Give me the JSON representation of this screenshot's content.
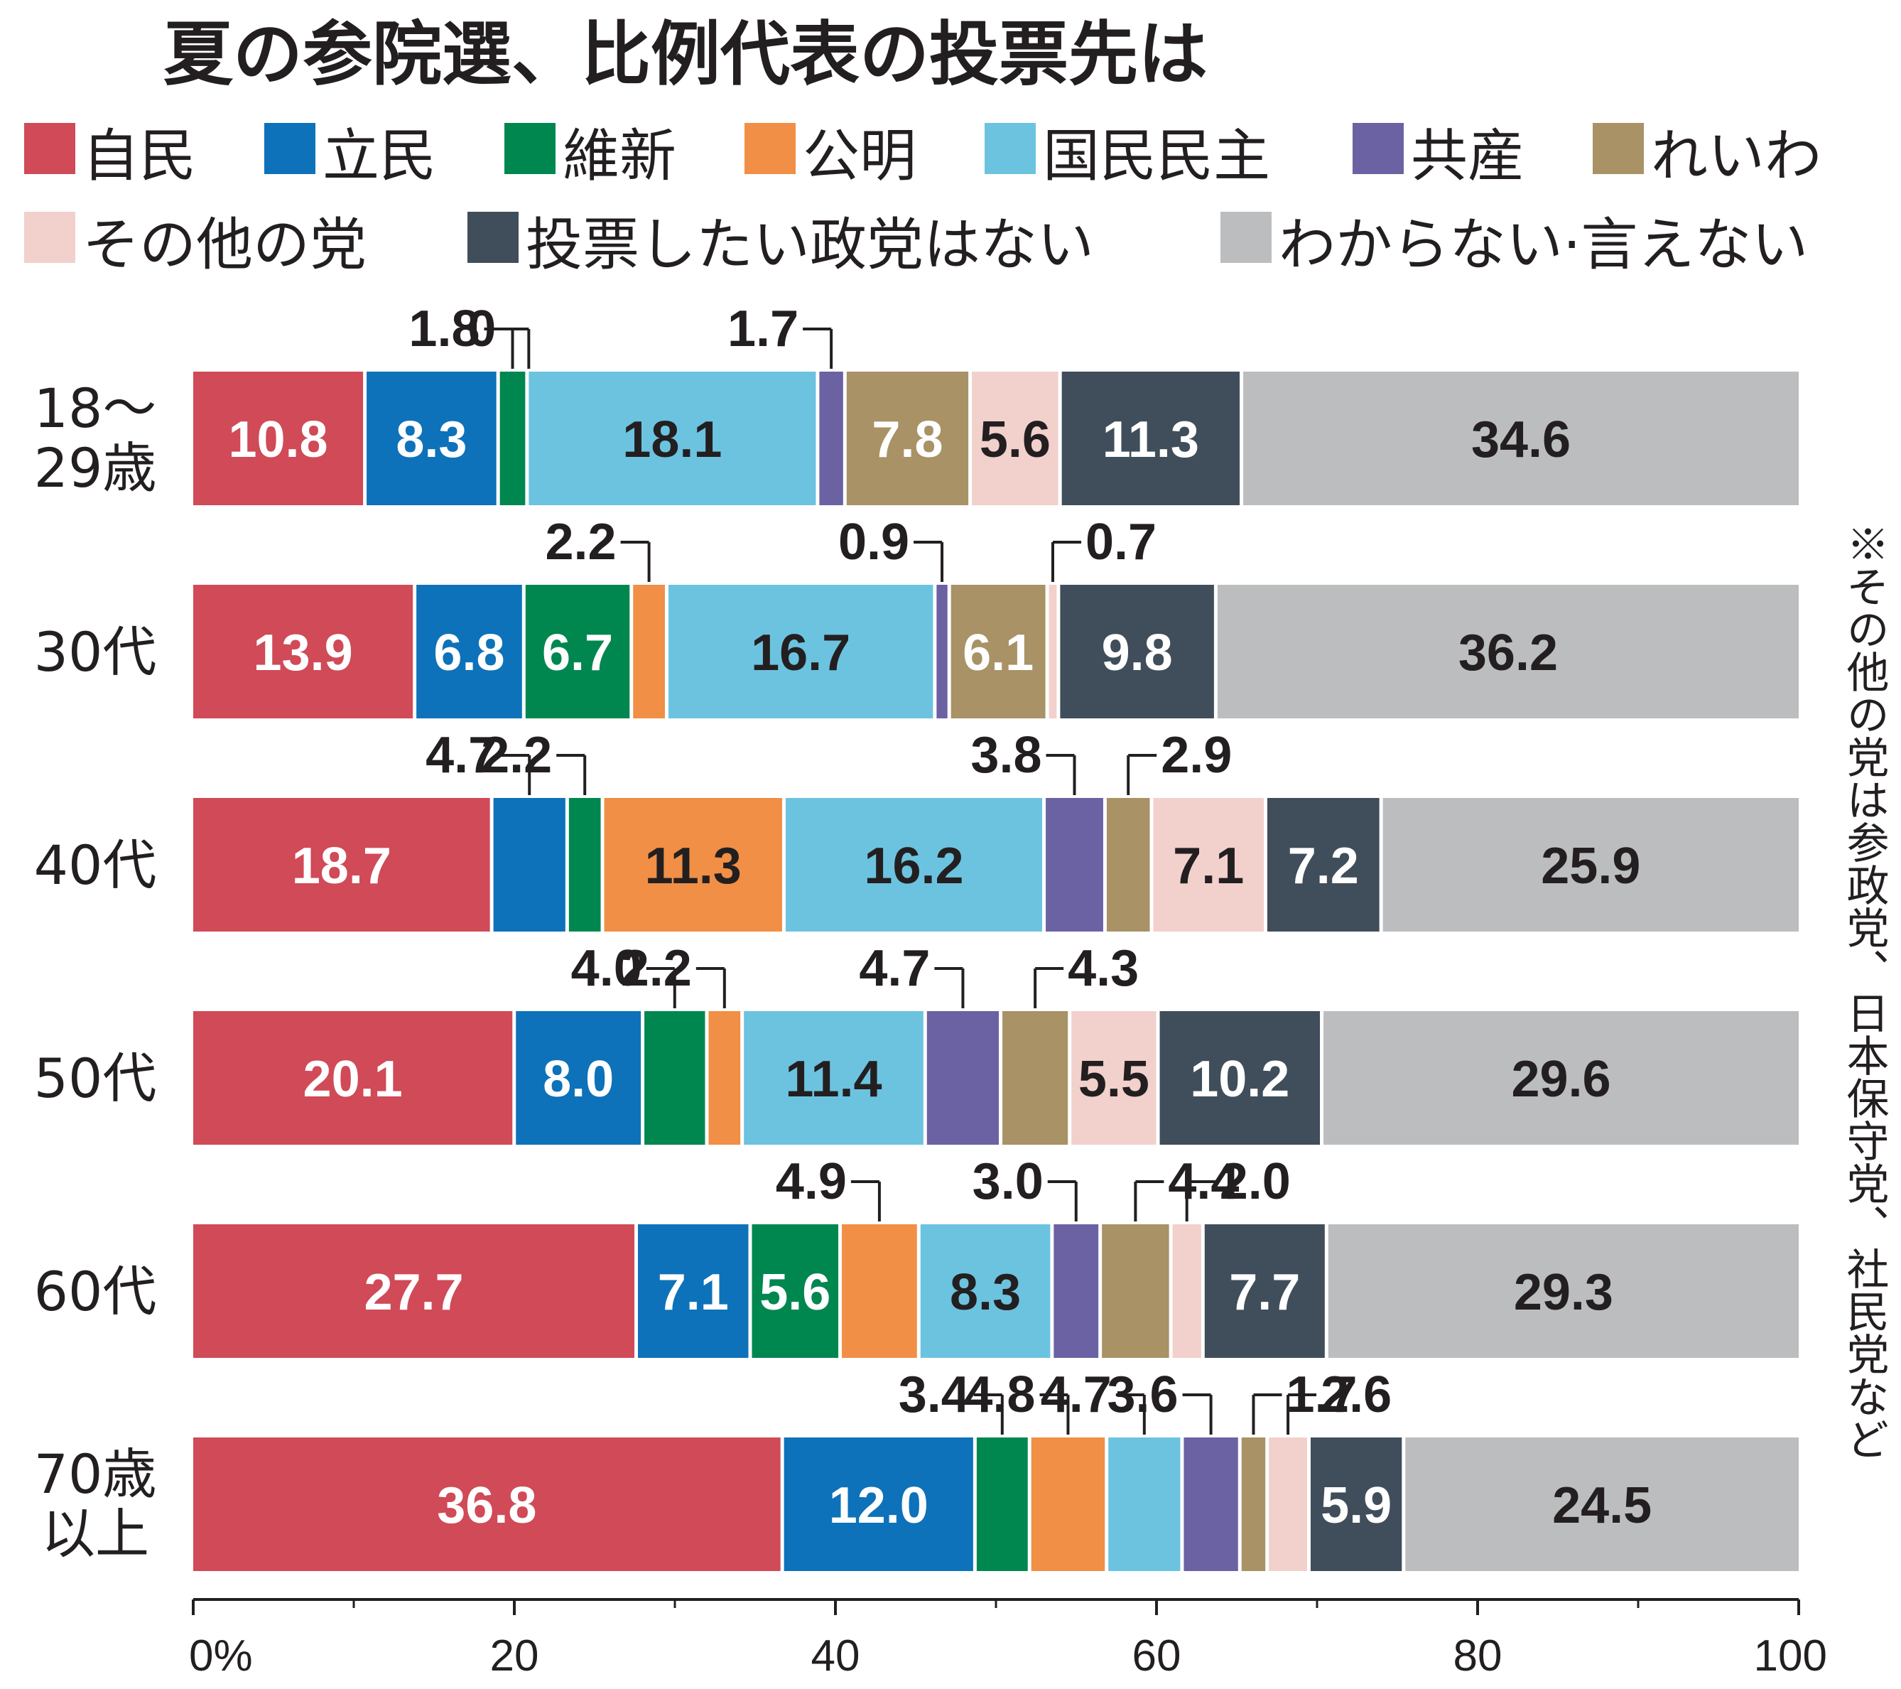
{
  "chart_data": {
    "type": "bar",
    "orientation": "horizontal",
    "stacked": true,
    "title": "夏の参院選、比例代表の投票先は",
    "note": "※その他の党は参政党、日本保守党、社民党など",
    "xlim": [
      0,
      100
    ],
    "xticks": [
      "0%",
      "20",
      "40",
      "60",
      "80",
      "100"
    ],
    "categories": [
      "18～\n29歳",
      "30代",
      "40代",
      "50代",
      "60代",
      "70歳\n以上"
    ],
    "series": [
      {
        "name": "自民",
        "color": "#d04a57",
        "values": [
          10.8,
          13.9,
          18.7,
          20.1,
          27.7,
          36.8
        ]
      },
      {
        "name": "立民",
        "color": "#0d72b9",
        "values": [
          8.3,
          6.8,
          4.7,
          8.0,
          7.1,
          12.0
        ]
      },
      {
        "name": "維新",
        "color": "#00874f",
        "values": [
          1.8,
          6.7,
          2.2,
          4.0,
          5.6,
          3.4
        ]
      },
      {
        "name": "公明",
        "color": "#f08f45",
        "values": [
          0,
          2.2,
          11.3,
          2.2,
          4.9,
          4.8
        ]
      },
      {
        "name": "国民民主",
        "color": "#6cc3df",
        "values": [
          18.1,
          16.7,
          16.2,
          11.4,
          8.3,
          4.7
        ]
      },
      {
        "name": "共産",
        "color": "#6b62a3",
        "values": [
          1.7,
          0.9,
          3.8,
          4.7,
          3.0,
          3.6
        ]
      },
      {
        "name": "れいわ",
        "color": "#a89266",
        "values": [
          7.8,
          6.1,
          2.9,
          4.3,
          4.4,
          1.7
        ]
      },
      {
        "name": "その他の党",
        "color": "#f2d0cb",
        "values": [
          5.6,
          0.7,
          7.1,
          5.5,
          2.0,
          2.6
        ]
      },
      {
        "name": "投票したい政党はない",
        "color": "#404e5b",
        "values": [
          11.3,
          9.8,
          7.2,
          10.2,
          7.7,
          5.9
        ]
      },
      {
        "name": "わからない・言えない",
        "color": "#bcbdbf",
        "values": [
          34.6,
          36.2,
          25.9,
          29.6,
          29.3,
          24.5
        ]
      }
    ],
    "legend": {
      "row1": [
        "自民",
        "立民",
        "維新",
        "公明",
        "国民民主",
        "共産",
        "れいわ"
      ],
      "row2": [
        "その他の党",
        "投票したい政党はない",
        "わからない·言えない"
      ]
    }
  }
}
